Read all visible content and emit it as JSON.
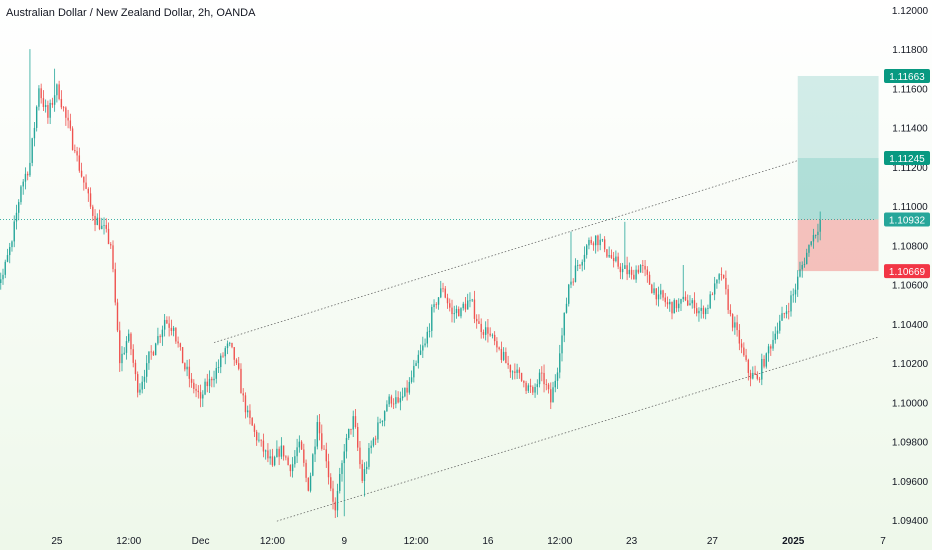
{
  "header": {
    "title": "Australian Dollar / New Zealand Dollar, 2h, OANDA"
  },
  "colors": {
    "up": "#26a69a",
    "down": "#ef5350",
    "axis_text": "#131722",
    "target_zone": "#26a69a",
    "stop_zone": "#ef5350",
    "tag_green": "#089981",
    "tag_red": "#f23645",
    "tag_current": "#26a69a"
  },
  "chart_data": {
    "type": "candlestick",
    "title": "Australian Dollar / New Zealand Dollar, 2h, OANDA",
    "ylim": [
      1.0935,
      1.1205
    ],
    "y_ticks": [
      1.12,
      1.118,
      1.116,
      1.114,
      1.112,
      1.11,
      1.108,
      1.106,
      1.104,
      1.102,
      1.1,
      1.098,
      1.096,
      1.094
    ],
    "y_tick_labels": [
      "1.12000",
      "1.11800",
      "1.11600",
      "1.11400",
      "1.11200",
      "1.11000",
      "1.10800",
      "1.10600",
      "1.10400",
      "1.10200",
      "1.10000",
      "1.09800",
      "1.09600",
      "1.09400"
    ],
    "x_ticks": [
      {
        "label": "25",
        "bar": 6,
        "bold": false
      },
      {
        "label": "12:00",
        "bar": 14,
        "bold": false
      },
      {
        "label": "Dec",
        "bar": 22,
        "bold": false
      },
      {
        "label": "12:00",
        "bar": 30,
        "bold": false
      },
      {
        "label": "9",
        "bar": 38,
        "bold": false
      },
      {
        "label": "12:00",
        "bar": 46,
        "bold": false
      },
      {
        "label": "16",
        "bar": 54,
        "bold": false
      },
      {
        "label": "12:00",
        "bar": 62,
        "bold": false
      },
      {
        "label": "23",
        "bar": 70,
        "bold": false
      },
      {
        "label": "27",
        "bar": 79,
        "bold": false
      },
      {
        "label": "2025",
        "bar": 88,
        "bold": true
      },
      {
        "label": "7",
        "bar": 98,
        "bold": false
      }
    ],
    "bar_count": 92,
    "anchors": [
      [
        0,
        1.1065
      ],
      [
        1,
        1.1082
      ],
      [
        2,
        1.111
      ],
      [
        3,
        1.1122
      ],
      [
        4,
        1.116
      ],
      [
        5,
        1.1145
      ],
      [
        6,
        1.1162
      ],
      [
        7,
        1.1145
      ],
      [
        8,
        1.1128
      ],
      [
        9,
        1.1112
      ],
      [
        10,
        1.1095
      ],
      [
        11,
        1.109
      ],
      [
        12,
        1.108
      ],
      [
        13,
        1.102
      ],
      [
        14,
        1.1035
      ],
      [
        15,
        1.1005
      ],
      [
        16,
        1.102
      ],
      [
        17,
        1.103
      ],
      [
        18,
        1.1042
      ],
      [
        19,
        1.1038
      ],
      [
        20,
        1.102
      ],
      [
        21,
        1.101
      ],
      [
        22,
        1.1002
      ],
      [
        23,
        1.1012
      ],
      [
        24,
        1.1018
      ],
      [
        25,
        1.103
      ],
      [
        26,
        1.102
      ],
      [
        27,
        1.0995
      ],
      [
        28,
        1.0985
      ],
      [
        29,
        1.0975
      ],
      [
        30,
        1.0968
      ],
      [
        31,
        1.0978
      ],
      [
        32,
        1.0965
      ],
      [
        33,
        1.098
      ],
      [
        34,
        1.0955
      ],
      [
        35,
        1.099
      ],
      [
        36,
        1.097
      ],
      [
        37,
        1.0945
      ],
      [
        38,
        1.0975
      ],
      [
        39,
        1.0993
      ],
      [
        40,
        1.096
      ],
      [
        41,
        1.0978
      ],
      [
        42,
        1.099
      ],
      [
        43,
        1.1003
      ],
      [
        44,
        1.1
      ],
      [
        45,
        1.1005
      ],
      [
        46,
        1.102
      ],
      [
        47,
        1.103
      ],
      [
        48,
        1.105
      ],
      [
        49,
        1.1058
      ],
      [
        50,
        1.1045
      ],
      [
        51,
        1.1048
      ],
      [
        52,
        1.1052
      ],
      [
        53,
        1.104
      ],
      [
        54,
        1.1035
      ],
      [
        55,
        1.1028
      ],
      [
        56,
        1.102
      ],
      [
        57,
        1.1015
      ],
      [
        58,
        1.101
      ],
      [
        59,
        1.1005
      ],
      [
        60,
        1.1015
      ],
      [
        61,
        1.1
      ],
      [
        62,
        1.1025
      ],
      [
        63,
        1.106
      ],
      [
        64,
        1.107
      ],
      [
        65,
        1.108
      ],
      [
        66,
        1.1085
      ],
      [
        67,
        1.1078
      ],
      [
        68,
        1.1072
      ],
      [
        69,
        1.1068
      ],
      [
        70,
        1.1065
      ],
      [
        71,
        1.107
      ],
      [
        72,
        1.106
      ],
      [
        73,
        1.1055
      ],
      [
        74,
        1.105
      ],
      [
        75,
        1.1048
      ],
      [
        76,
        1.1052
      ],
      [
        77,
        1.1048
      ],
      [
        78,
        1.1045
      ],
      [
        79,
        1.1055
      ],
      [
        80,
        1.1065
      ],
      [
        81,
        1.1045
      ],
      [
        82,
        1.103
      ],
      [
        83,
        1.1015
      ],
      [
        84,
        1.1012
      ],
      [
        85,
        1.1025
      ],
      [
        86,
        1.1035
      ],
      [
        87,
        1.1045
      ],
      [
        88,
        1.1055
      ],
      [
        89,
        1.107
      ],
      [
        90,
        1.1082
      ],
      [
        91,
        1.1093
      ]
    ],
    "channel_upper": {
      "from": {
        "bar": 23.5,
        "y": 1.10305
      },
      "to": {
        "bar": 88.5,
        "y": 1.11232
      }
    },
    "channel_lower": {
      "from": {
        "bar": 30.5,
        "y": 1.09395
      },
      "to": {
        "bar": 97.5,
        "y": 1.10333
      }
    },
    "position_tool": {
      "from_bar": 88.5,
      "to_bar": 97.5,
      "entry": 1.10932,
      "target": 1.11663,
      "target_mid": 1.11245,
      "stop": 1.10669
    },
    "price_tags": [
      {
        "label": "1.11663",
        "value": 1.11663,
        "kind": "green"
      },
      {
        "label": "1.11245",
        "value": 1.11245,
        "kind": "green"
      },
      {
        "label": "1.10932",
        "value": 1.10932,
        "kind": "current"
      },
      {
        "label": "1.10669",
        "value": 1.10669,
        "kind": "red"
      }
    ],
    "current_price": 1.10932
  }
}
